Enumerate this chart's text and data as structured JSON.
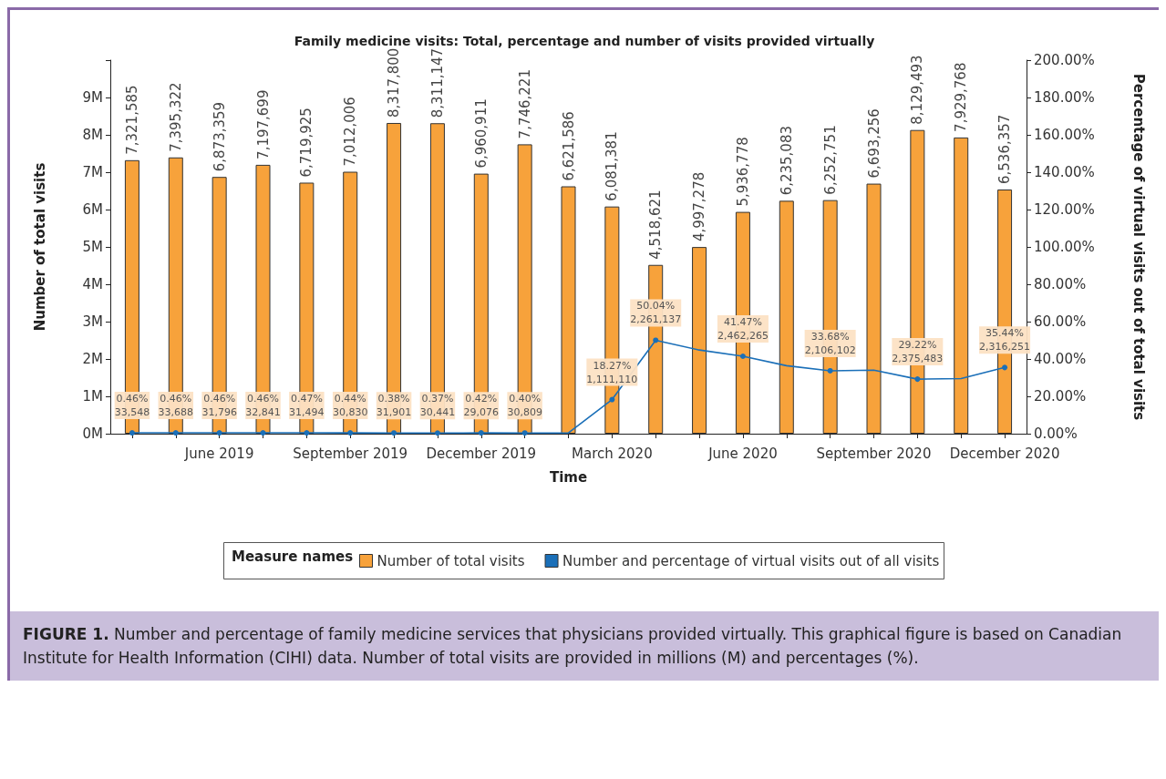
{
  "chart_data": {
    "type": "bar",
    "title": "Family medicine visits: Total, percentage and number of visits provided virtually",
    "xlabel": "Time",
    "ylabel": "Number of total visits",
    "y2label": "Percentage of virtual visits out of total visits",
    "legend_title": "Measure names",
    "legend": "bottom",
    "marker": "circle",
    "categories": [
      null,
      null,
      "June 2019",
      null,
      null,
      "September 2019",
      null,
      null,
      "December 2019",
      null,
      null,
      "March 2020",
      null,
      null,
      "June 2020",
      null,
      null,
      "September 2020",
      null,
      null,
      "December 2020"
    ],
    "ylim": [
      0,
      10000000
    ],
    "yticks": [
      {
        "value": 0,
        "label": "0M"
      },
      {
        "value": 1000000,
        "label": "1M"
      },
      {
        "value": 2000000,
        "label": "2M"
      },
      {
        "value": 3000000,
        "label": "3M"
      },
      {
        "value": 4000000,
        "label": "4M"
      },
      {
        "value": 5000000,
        "label": "5M"
      },
      {
        "value": 6000000,
        "label": "6M"
      },
      {
        "value": 7000000,
        "label": "7M"
      },
      {
        "value": 8000000,
        "label": "8M"
      },
      {
        "value": 9000000,
        "label": "9M"
      },
      {
        "value": 10000000,
        "label": null
      }
    ],
    "y2lim": [
      0,
      200
    ],
    "y2ticks": [
      {
        "value": 0,
        "label": "0.00%"
      },
      {
        "value": 20,
        "label": "20.00%"
      },
      {
        "value": 40,
        "label": "40.00%"
      },
      {
        "value": 60,
        "label": "60.00%"
      },
      {
        "value": 80,
        "label": "80.00%"
      },
      {
        "value": 100,
        "label": "100.00%"
      },
      {
        "value": 120,
        "label": "120.00%"
      },
      {
        "value": 140,
        "label": "140.00%"
      },
      {
        "value": 160,
        "label": "160.00%"
      },
      {
        "value": 180,
        "label": "180.00%"
      },
      {
        "value": 200,
        "label": "200.00%"
      }
    ],
    "series": [
      {
        "name": "Number of total visits",
        "color": "#f7a23b",
        "values": [
          7321585,
          7395322,
          6873359,
          7197699,
          6719925,
          7012006,
          8317800,
          8311147,
          6960911,
          7746221,
          6621586,
          6081381,
          4518621,
          4997278,
          5936778,
          6235083,
          6252751,
          6693256,
          8129493,
          7929768,
          6536357
        ],
        "value_labels": [
          "7,321,585",
          "7,395,322",
          "6,873,359",
          "7,197,699",
          "6,719,925",
          "7,012,006",
          "8,317,800",
          "8,311,147",
          "6,960,911",
          "7,746,221",
          "6,621,586",
          "6,081,381",
          "4,518,621",
          "4,997,278",
          "5,936,778",
          "6,235,083",
          "6,252,751",
          "6,693,256",
          "8,129,493",
          "7,929,768",
          "6,536,357"
        ]
      },
      {
        "name": "Number and percentage of virtual visits out of all visits",
        "type": "line",
        "axis": "y2",
        "color": "#1a6fb8",
        "values": [
          0.46,
          0.46,
          0.46,
          0.46,
          0.47,
          0.44,
          0.38,
          0.37,
          0.42,
          0.4,
          0.4,
          18.27,
          50.04,
          44.8,
          41.47,
          36.4,
          33.68,
          34.0,
          29.22,
          29.5,
          35.44
        ],
        "value_labels": [
          "0.46%\n33,548",
          "0.46%\n33,688",
          "0.46%\n31,796",
          "0.46%\n32,841",
          "0.47%\n31,494",
          "0.44%\n30,830",
          "0.38%\n31,901",
          "0.37%\n30,441",
          "0.42%\n29,076",
          "0.40%\n30,809",
          null,
          "18.27%\n1,111,110",
          "50.04%\n2,261,137",
          null,
          "41.47%\n2,462,265",
          null,
          "33.68%\n2,106,102",
          null,
          "29.22%\n2,375,483",
          null,
          "35.44%\n2,316,251"
        ]
      }
    ],
    "annotations": [
      "FIGURE 1. Number and percentage of family medicine services that physicians provided virtually. This graphical figure is based on Canadian Institute for Health Information (CIHI) data. Number of total visits are provided in millions (M) and percentages (%)."
    ]
  }
}
